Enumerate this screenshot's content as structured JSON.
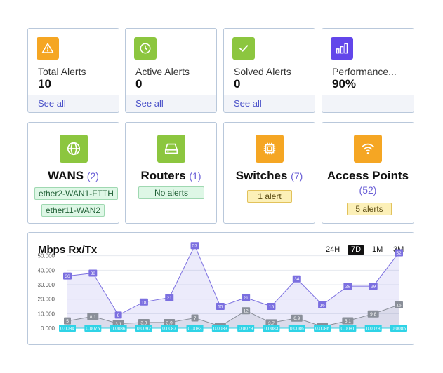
{
  "stats": [
    {
      "label": "Total Alerts",
      "value": "10",
      "link": "See all",
      "icon": "warning-icon",
      "color": "#f5a623"
    },
    {
      "label": "Active Alerts",
      "value": "0",
      "link": "See all",
      "icon": "clock-icon",
      "color": "#8cc63f"
    },
    {
      "label": "Solved Alerts",
      "value": "0",
      "link": "See all",
      "icon": "check-icon",
      "color": "#8cc63f"
    },
    {
      "label": "Performance...",
      "value": "90%",
      "link": "",
      "icon": "bar-chart-icon",
      "color": "#6246ea"
    }
  ],
  "devices": {
    "wans": {
      "title": "WANS",
      "count": "(2)",
      "tags": [
        "ether2-WAN1-FTTH",
        "ether11-WAN2"
      ],
      "icon": "globe-icon",
      "color": "#8cc63f"
    },
    "routers": {
      "title": "Routers",
      "count": "(1)",
      "tags": [
        "No alerts"
      ],
      "icon": "router-icon",
      "color": "#8cc63f"
    },
    "switches": {
      "title": "Switches",
      "count": "(7)",
      "tags": [
        "1 alert"
      ],
      "icon": "chip-icon",
      "color": "#f5a623"
    },
    "access_points": {
      "title": "Access Points",
      "count": "(52)",
      "tags": [
        "5 alerts"
      ],
      "icon": "wifi-icon",
      "color": "#f5a623"
    }
  },
  "chart": {
    "title": "Mbps Rx/Tx",
    "ranges": [
      "24H",
      "7D",
      "1M",
      "3M"
    ],
    "active_range": "7D"
  },
  "chart_data": {
    "type": "area",
    "title": "Mbps Rx/Tx",
    "ylim": [
      0,
      60
    ],
    "yticks": [
      "0.000",
      "10.000",
      "20.000",
      "30.000",
      "40.000",
      "50.000"
    ],
    "ytick_values": [
      0,
      10,
      20,
      30,
      40,
      50
    ],
    "series": [
      {
        "values": [
          36,
          38,
          9,
          18,
          21,
          57,
          15,
          21,
          15,
          34,
          16,
          29,
          29,
          52
        ],
        "labels": [
          "36",
          "38",
          "9",
          "18",
          "21",
          "57",
          "15",
          "21",
          "15",
          "34",
          "16",
          "29",
          "29",
          "52"
        ],
        "color": "#7b6fe0"
      },
      {
        "values": [
          5,
          8.1,
          3.1,
          3.9,
          3.9,
          7,
          1.3,
          12,
          3.7,
          6.9,
          1.1,
          5.1,
          9.8,
          16
        ],
        "labels": [
          "5",
          "8.1",
          "3.1",
          "3.9",
          "3.9",
          "7",
          "1.3",
          "12",
          "3.7",
          "6.9",
          "1.1",
          "5.1",
          "9.8",
          "16"
        ],
        "color": "#8a8f99"
      },
      {
        "values": [
          0.0084,
          0.0076,
          0.0086,
          0.0092,
          0.0087,
          0.0083,
          0.0083,
          0.0079,
          0.0083,
          0.0086,
          0.0086,
          0.0081,
          0.0078,
          0.0085
        ],
        "labels": [
          "0.0084",
          "0.0076",
          "0.0086",
          "0.0092",
          "0.0087",
          "0.0083",
          "0.0083",
          "0.0079",
          "0.0083",
          "0.0086",
          "0.0086",
          "0.0081",
          "0.0078",
          "0.0085"
        ],
        "color": "#2fd3e6"
      }
    ]
  }
}
